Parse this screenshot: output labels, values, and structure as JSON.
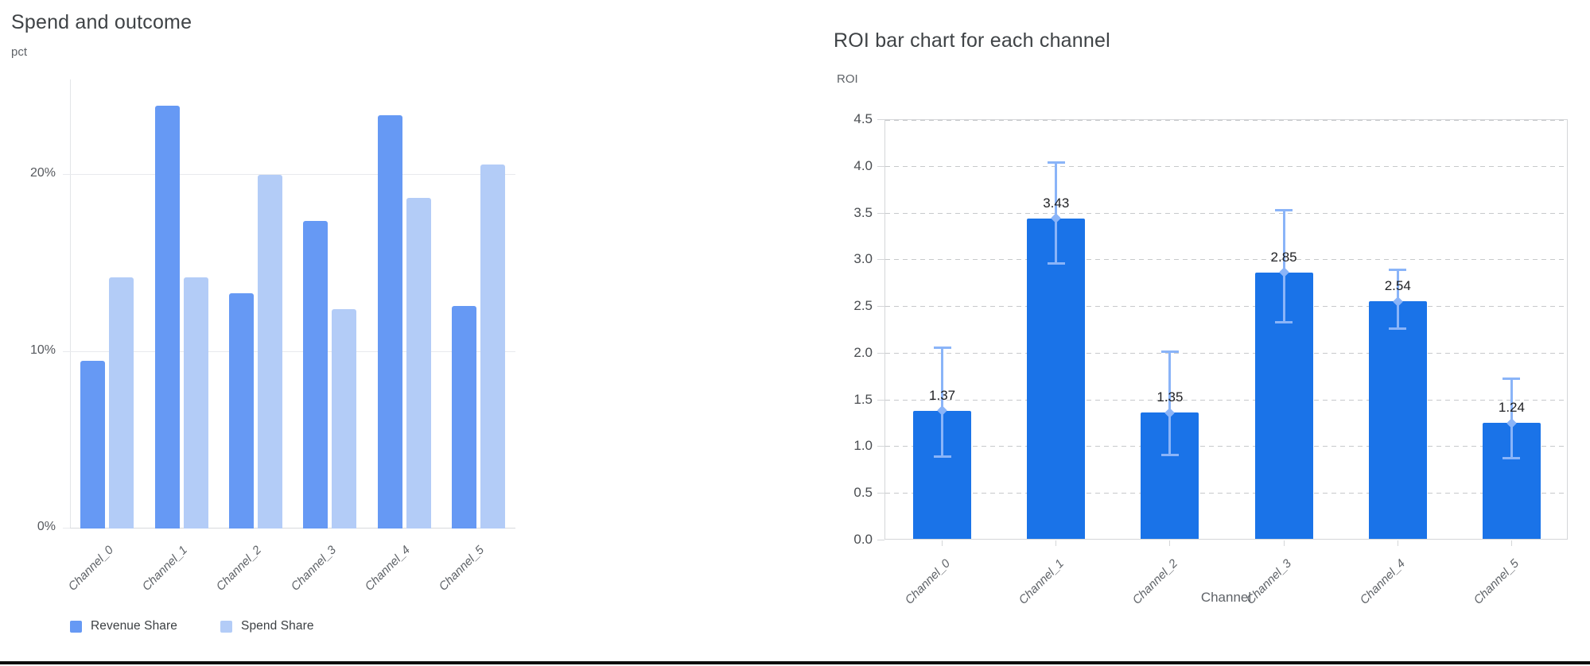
{
  "colors": {
    "revenue_bar": "#6699f4",
    "spend_bar": "#b3ccf7",
    "roi_bar": "#1a73e8",
    "error_bar": "#8ab4f8",
    "left_grid": "#e8eaed",
    "left_axis_line": "#d8dadd",
    "right_grid_dashed": "#c7c9cb",
    "right_frame": "#d4d6d8",
    "title_text": "#3f4346",
    "muted_text": "#5f6368",
    "left_tick_text": "#56595e",
    "right_tick_text": "#494c50",
    "value_label_text": "#202124",
    "bottom_border": "#0c0c0c"
  },
  "chart_data": [
    {
      "type": "bar",
      "title": "Spend and outcome",
      "ylabel": "pct",
      "xlabel": "",
      "categories": [
        "Channel_0",
        "Channel_1",
        "Channel_2",
        "Channel_3",
        "Channel_4",
        "Channel_5"
      ],
      "series": [
        {
          "name": "Revenue Share",
          "color": "#6699f4",
          "values": [
            9.5,
            23.9,
            13.3,
            17.4,
            23.4,
            12.6
          ]
        },
        {
          "name": "Spend Share",
          "color": "#b3ccf7",
          "values": [
            14.2,
            14.2,
            20.0,
            12.4,
            18.7,
            20.6
          ]
        }
      ],
      "ytick_values": [
        0,
        10,
        20
      ],
      "ytick_labels": [
        "0%",
        "10%",
        "20%"
      ],
      "ylim": [
        0,
        25.4
      ],
      "grid": "solid",
      "legend_position": "bottom"
    },
    {
      "type": "bar",
      "title": "ROI bar chart for each channel",
      "ylabel": "ROI",
      "xlabel": "Channel",
      "categories": [
        "Channel_0",
        "Channel_1",
        "Channel_2",
        "Channel_3",
        "Channel_4",
        "Channel_5"
      ],
      "values": [
        1.37,
        3.43,
        1.35,
        2.85,
        2.54,
        1.24
      ],
      "value_labels": [
        "1.37",
        "3.43",
        "1.35",
        "2.85",
        "2.54",
        "1.24"
      ],
      "error_low": [
        0.88,
        2.95,
        0.9,
        2.32,
        2.25,
        0.86
      ],
      "error_high": [
        2.05,
        4.03,
        2.0,
        3.52,
        2.88,
        1.71
      ],
      "ytick_values": [
        0.0,
        0.5,
        1.0,
        1.5,
        2.0,
        2.5,
        3.0,
        3.5,
        4.0,
        4.5
      ],
      "ytick_labels": [
        "0.0",
        "0.5",
        "1.0",
        "1.5",
        "2.0",
        "2.5",
        "3.0",
        "3.5",
        "4.0",
        "4.5"
      ],
      "ylim": [
        0,
        4.5
      ],
      "grid": "dashed",
      "legend_position": "none"
    }
  ]
}
